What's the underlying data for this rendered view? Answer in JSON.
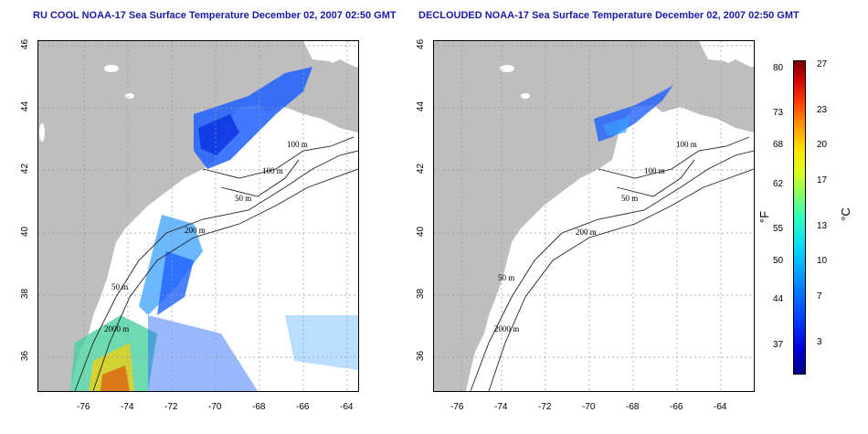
{
  "titles": {
    "left": "RU COOL NOAA-17 Sea Surface Temperature December 02, 2007 02:50 GMT",
    "right": "DECLOUDED NOAA-17 Sea Surface Temperature December 02, 2007 02:50 GMT"
  },
  "axes": {
    "x_ticks": [
      "-76",
      "-74",
      "-72",
      "-70",
      "-68",
      "-66",
      "-64"
    ],
    "y_ticks": [
      "46",
      "44",
      "42",
      "40",
      "38",
      "36"
    ]
  },
  "contours": {
    "left": [
      "100 m",
      "100 m",
      "50 m",
      "200 m",
      "50 m",
      "2000 m"
    ],
    "right": [
      "100 m",
      "100 m",
      "50 m",
      "200 m",
      "50 m",
      "2000 m"
    ]
  },
  "colorbar": {
    "f_ticks": [
      "80",
      "73",
      "68",
      "62",
      "55",
      "50",
      "44",
      "37"
    ],
    "c_ticks": [
      "27",
      "23",
      "20",
      "17",
      "13",
      "10",
      "7",
      "3"
    ],
    "f_unit": "°F",
    "c_unit": "°C"
  },
  "colors": {
    "land": "#bebebe",
    "title": "#1a1aa6",
    "cold": "#1a5cff",
    "warm": "#e03000"
  }
}
